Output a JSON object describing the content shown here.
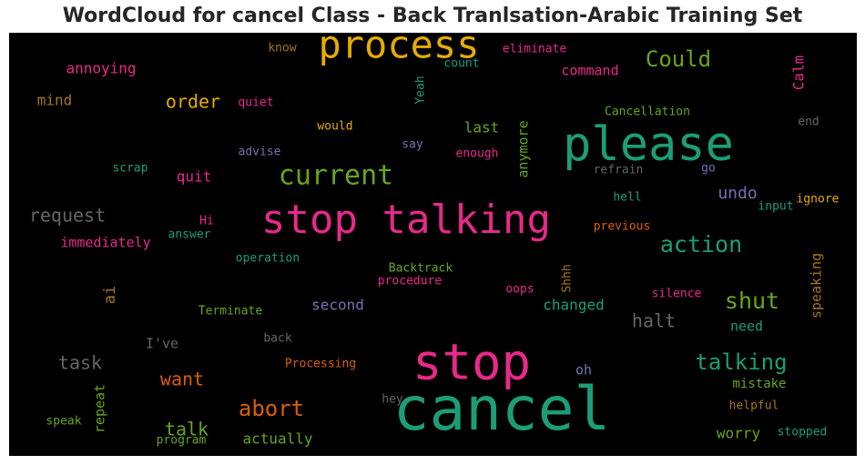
{
  "title": "WordCloud for cancel Class - Back Tranlsation-Arabic Training Set",
  "chart_data": {
    "type": "wordcloud",
    "title": "WordCloud for cancel Class - Back Tranlsation-Arabic Training Set",
    "background": "#000000",
    "palette": {
      "pink": "#e7298a",
      "teal": "#1b9e77",
      "orange": "#d95f02",
      "olive": "#66a61e",
      "purple": "#7570b3",
      "gold": "#e6ab02",
      "brown": "#a6761d",
      "gray": "#666666"
    },
    "words": [
      {
        "text": "stop talking",
        "color": "pink"
      },
      {
        "text": "cancel",
        "color": "teal"
      },
      {
        "text": "stop",
        "color": "pink"
      },
      {
        "text": "please",
        "color": "teal"
      },
      {
        "text": "process",
        "color": "gold"
      },
      {
        "text": "current",
        "color": "olive"
      },
      {
        "text": "Could",
        "color": "olive"
      },
      {
        "text": "action",
        "color": "teal"
      },
      {
        "text": "abort",
        "color": "orange"
      },
      {
        "text": "shut",
        "color": "olive"
      },
      {
        "text": "talking",
        "color": "teal"
      },
      {
        "text": "order",
        "color": "gold"
      },
      {
        "text": "request",
        "color": "gray"
      },
      {
        "text": "want",
        "color": "orange"
      },
      {
        "text": "talk",
        "color": "olive"
      },
      {
        "text": "task",
        "color": "gray"
      },
      {
        "text": "halt",
        "color": "gray"
      },
      {
        "text": "undo",
        "color": "purple"
      },
      {
        "text": "quit",
        "color": "pink"
      },
      {
        "text": "annoying",
        "color": "pink"
      },
      {
        "text": "immediately",
        "color": "pink"
      },
      {
        "text": "command",
        "color": "pink"
      },
      {
        "text": "second",
        "color": "purple"
      },
      {
        "text": "changed",
        "color": "teal"
      },
      {
        "text": "actually",
        "color": "olive"
      },
      {
        "text": "mistake",
        "color": "olive"
      },
      {
        "text": "worry",
        "color": "olive"
      },
      {
        "text": "Calm",
        "color": "pink"
      },
      {
        "text": "mind",
        "color": "brown"
      },
      {
        "text": "last",
        "color": "olive"
      },
      {
        "text": "anymore",
        "color": "olive"
      },
      {
        "text": "speaking",
        "color": "brown"
      },
      {
        "text": "repeat",
        "color": "olive"
      },
      {
        "text": "need",
        "color": "teal"
      },
      {
        "text": "ai",
        "color": "brown"
      },
      {
        "text": "I've",
        "color": "gray"
      },
      {
        "text": "oh",
        "color": "purple"
      },
      {
        "text": "Cancellation",
        "color": "olive"
      },
      {
        "text": "quiet",
        "color": "pink"
      },
      {
        "text": "would",
        "color": "gold"
      },
      {
        "text": "say",
        "color": "purple"
      },
      {
        "text": "enough",
        "color": "pink"
      },
      {
        "text": "advise",
        "color": "purple"
      },
      {
        "text": "refrain",
        "color": "gray"
      },
      {
        "text": "go",
        "color": "purple"
      },
      {
        "text": "end",
        "color": "gray"
      },
      {
        "text": "scrap",
        "color": "teal"
      },
      {
        "text": "hell",
        "color": "teal"
      },
      {
        "text": "ignore",
        "color": "gold"
      },
      {
        "text": "input",
        "color": "teal"
      },
      {
        "text": "Hi",
        "color": "pink"
      },
      {
        "text": "answer",
        "color": "teal"
      },
      {
        "text": "previous",
        "color": "orange"
      },
      {
        "text": "operation",
        "color": "teal"
      },
      {
        "text": "Backtrack",
        "color": "olive"
      },
      {
        "text": "procedure",
        "color": "pink"
      },
      {
        "text": "oops",
        "color": "pink"
      },
      {
        "text": "Shhh",
        "color": "brown"
      },
      {
        "text": "silence",
        "color": "pink"
      },
      {
        "text": "Terminate",
        "color": "olive"
      },
      {
        "text": "back",
        "color": "gray"
      },
      {
        "text": "Processing",
        "color": "orange"
      },
      {
        "text": "hey",
        "color": "gray"
      },
      {
        "text": "helpful",
        "color": "brown"
      },
      {
        "text": "stopped",
        "color": "teal"
      },
      {
        "text": "speak",
        "color": "olive"
      },
      {
        "text": "program",
        "color": "olive"
      },
      {
        "text": "know",
        "color": "brown"
      },
      {
        "text": "Yeah",
        "color": "teal"
      },
      {
        "text": "count",
        "color": "teal"
      },
      {
        "text": "eliminate",
        "color": "pink"
      }
    ]
  }
}
